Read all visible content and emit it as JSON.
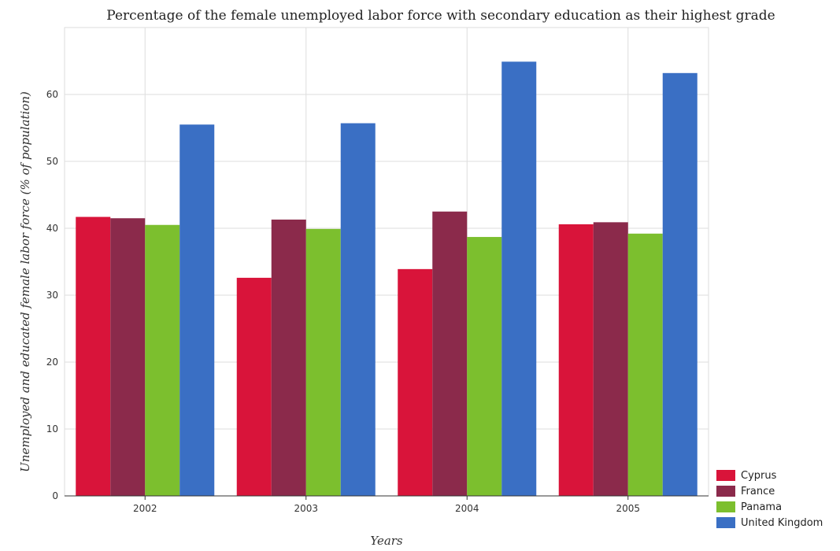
{
  "title": "Percentage of the female unemployed labor force with secondary education as their highest grade",
  "colors": {
    "Cyprus": "#d9143a",
    "France": "#8b2a4b",
    "Panama": "#7cbf2e",
    "United Kingdom": "#3a6fc4"
  },
  "chart_data": {
    "type": "bar",
    "title": "Percentage of the female unemployed labor force with secondary education as their highest grade",
    "xlabel": "Years",
    "ylabel": "Unemployed and educated female labor force (% of population)",
    "categories": [
      "2002",
      "2003",
      "2004",
      "2005"
    ],
    "ylim": [
      0,
      70
    ],
    "yticks": [
      0,
      10,
      20,
      30,
      40,
      50,
      60
    ],
    "grid": true,
    "legend_position": "bottom-right",
    "series": [
      {
        "name": "Cyprus",
        "values": [
          41.7,
          32.6,
          33.9,
          40.6
        ]
      },
      {
        "name": "France",
        "values": [
          41.5,
          41.3,
          42.5,
          40.9
        ]
      },
      {
        "name": "Panama",
        "values": [
          40.5,
          39.9,
          38.7,
          39.2
        ]
      },
      {
        "name": "United Kingdom",
        "values": [
          55.5,
          55.7,
          64.9,
          63.2
        ]
      }
    ]
  }
}
